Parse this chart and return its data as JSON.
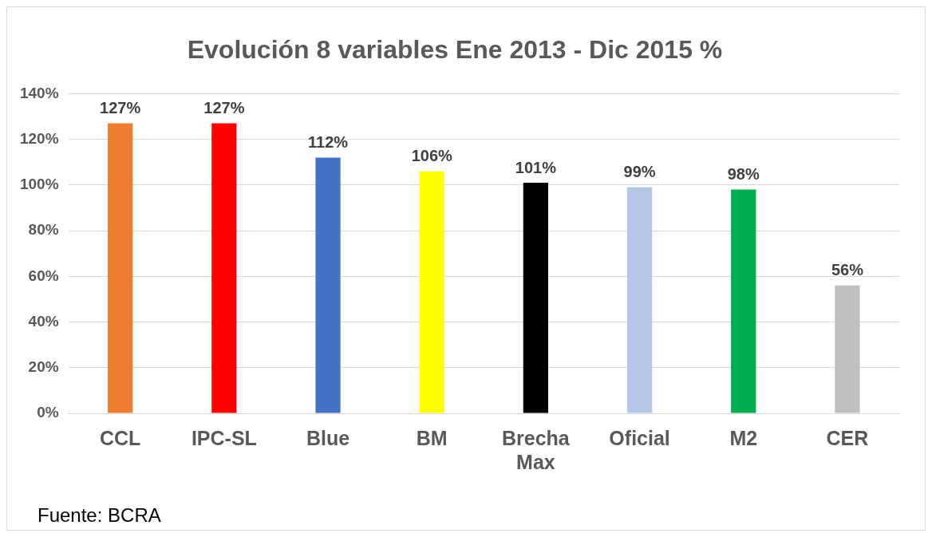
{
  "chart_data": {
    "type": "bar",
    "title": "Evolución 8 variables Ene 2013 - Dic 2015 %",
    "categories": [
      "CCL",
      "IPC-SL",
      "Blue",
      "BM",
      "Brecha Max",
      "Oficial",
      "M2",
      "CER"
    ],
    "values": [
      127,
      127,
      112,
      106,
      101,
      99,
      98,
      56
    ],
    "colors": [
      "#ed7d31",
      "#ff0000",
      "#4472c4",
      "#ffff00",
      "#000000",
      "#b4c7e7",
      "#00b050",
      "#bfbfbf"
    ],
    "value_labels": [
      "127%",
      "127%",
      "112%",
      "106%",
      "101%",
      "99%",
      "98%",
      "56%"
    ],
    "ylim": [
      0,
      140
    ],
    "yticks": [
      {
        "value": 0,
        "label": "0%"
      },
      {
        "value": 20,
        "label": "20%"
      },
      {
        "value": 40,
        "label": "40%"
      },
      {
        "value": 60,
        "label": "60%"
      },
      {
        "value": 80,
        "label": "80%"
      },
      {
        "value": 100,
        "label": "100%"
      },
      {
        "value": 120,
        "label": "120%"
      },
      {
        "value": 140,
        "label": "140%"
      }
    ],
    "grid": "y",
    "legend": false,
    "annotations": [
      "Fuente: BCRA"
    ]
  }
}
